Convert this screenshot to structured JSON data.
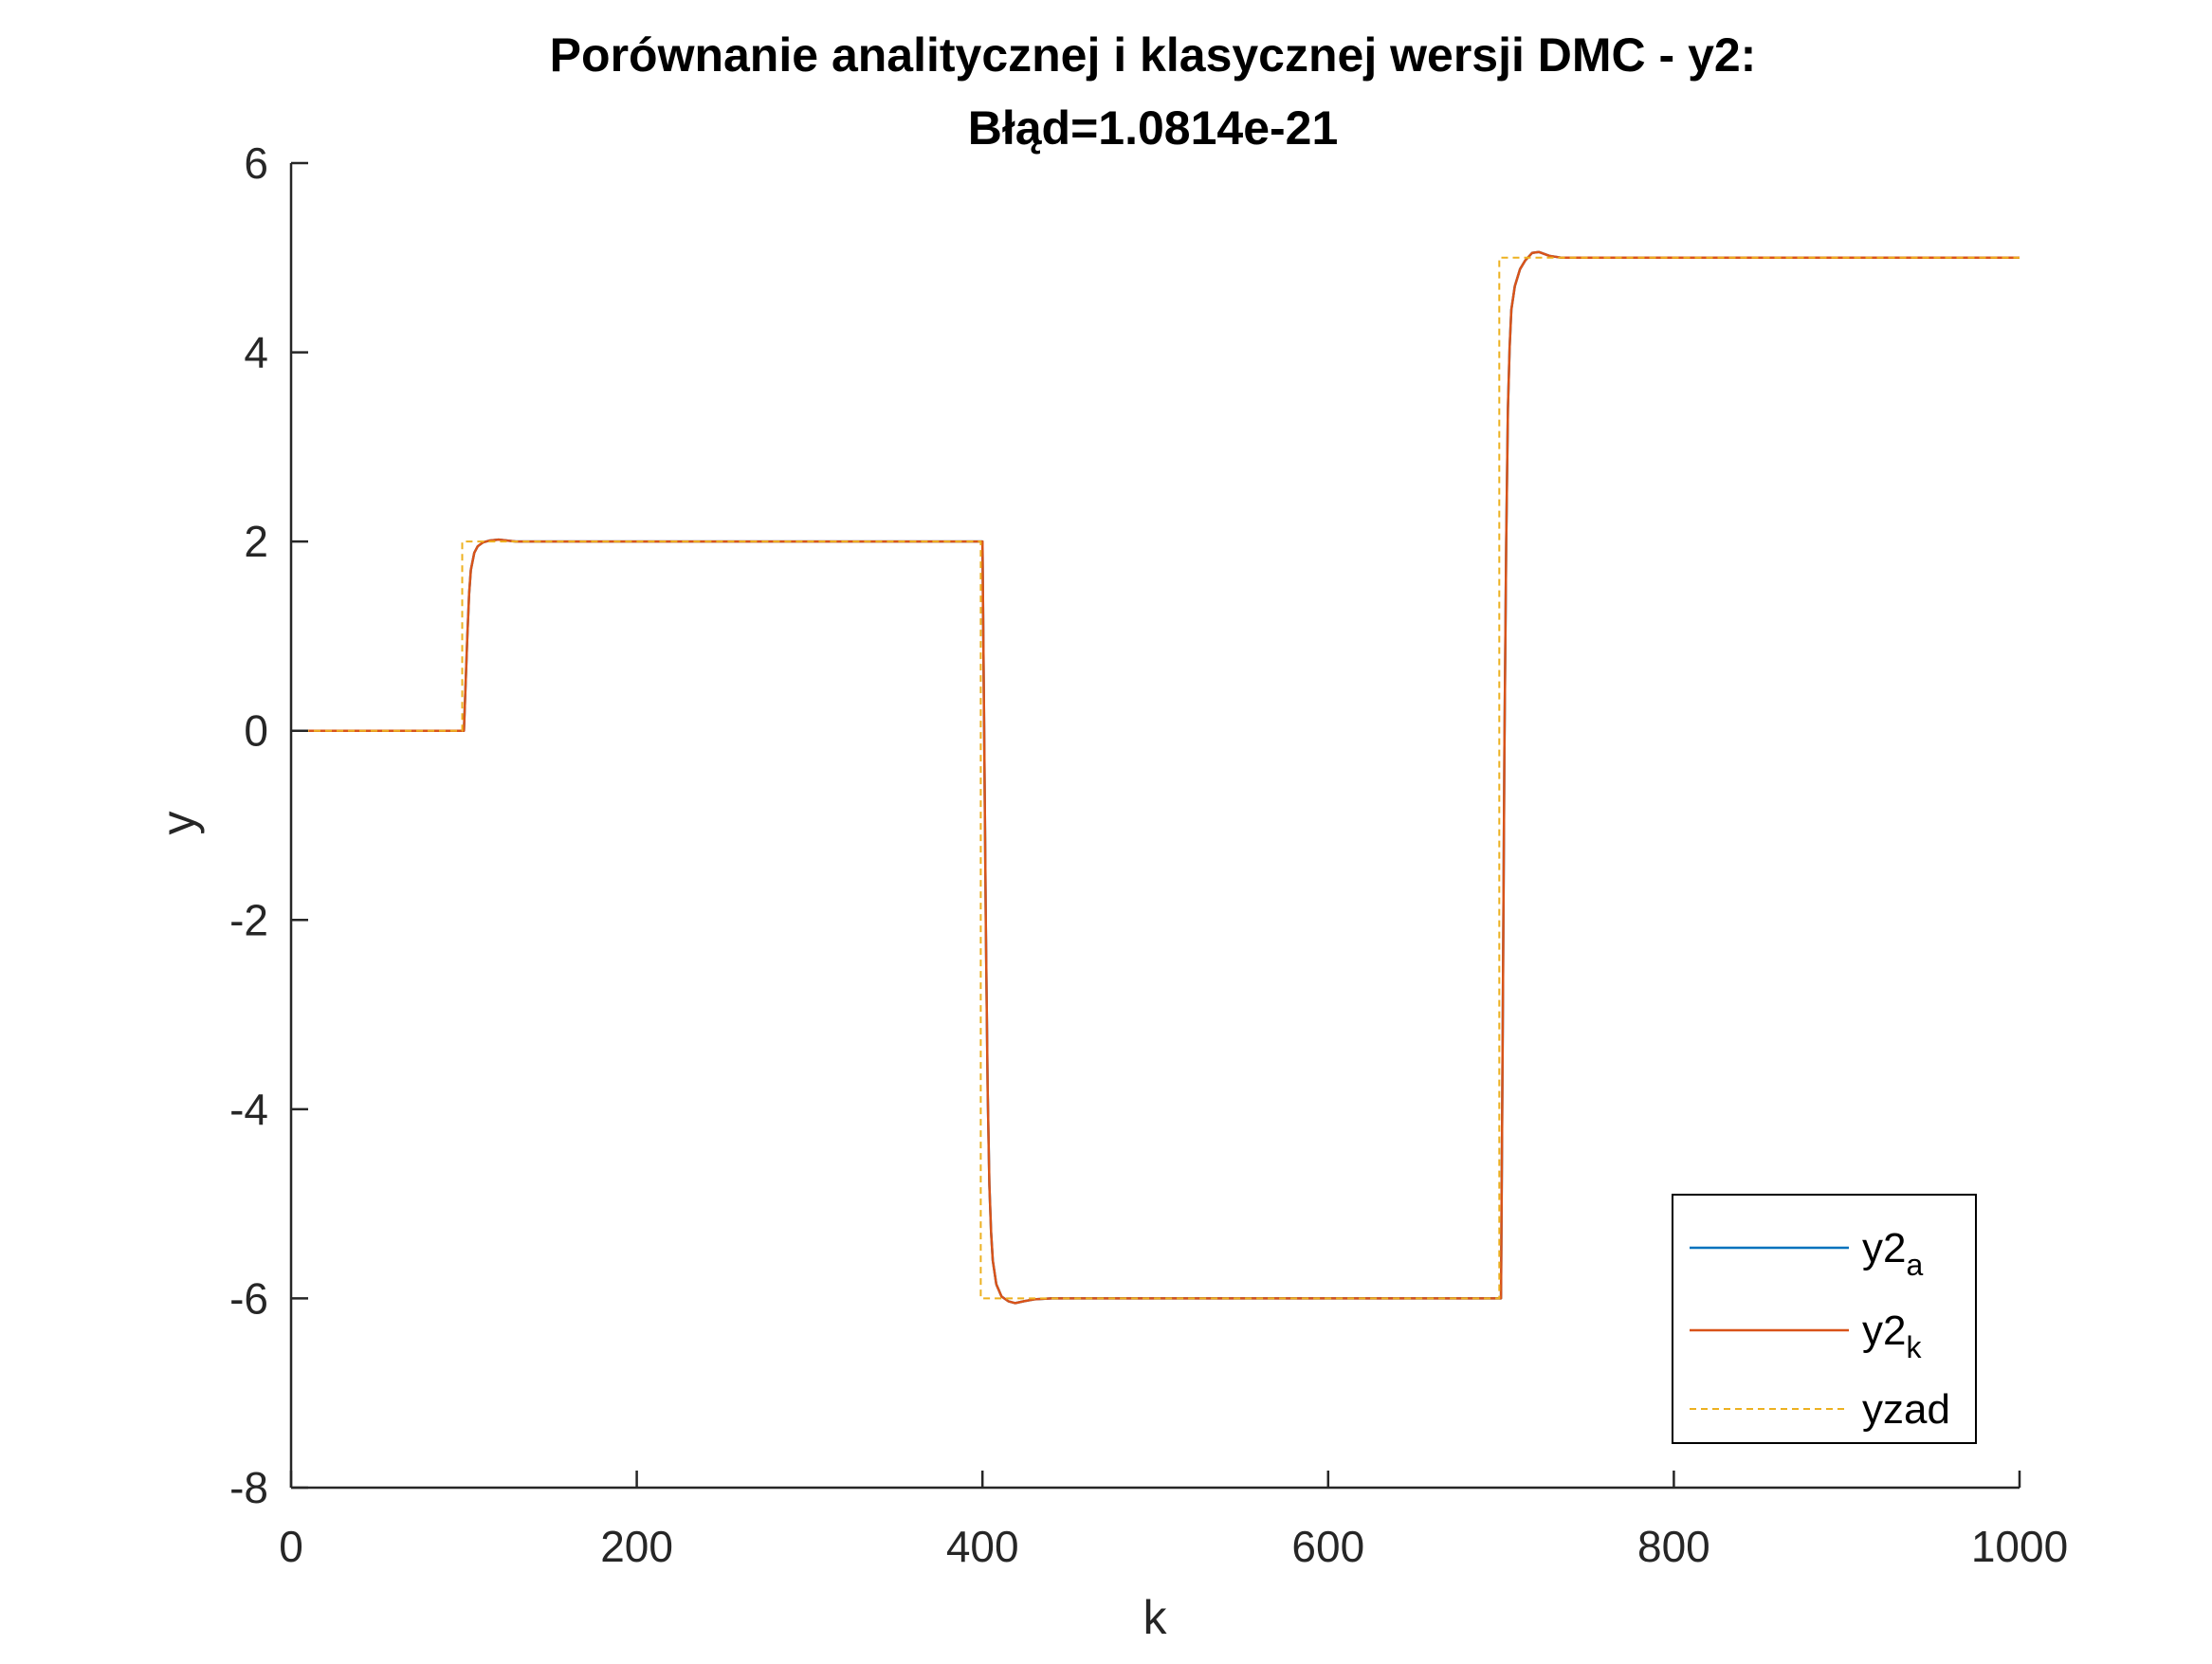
{
  "chart_data": {
    "type": "line",
    "title_line1": "Porównanie analitycznej i klasycznej wersji DMC - y2:",
    "title_line2": "Błąd=1.0814e-21",
    "xlabel": "k",
    "ylabel": "y",
    "xlim": [
      0,
      1000
    ],
    "ylim": [
      -8,
      6
    ],
    "x_ticks": [
      0,
      200,
      400,
      600,
      800,
      1000
    ],
    "y_ticks": [
      -8,
      -6,
      -4,
      -2,
      0,
      2,
      4,
      6
    ],
    "x_tick_labels": [
      "0",
      "200",
      "400",
      "600",
      "800",
      "1000"
    ],
    "y_tick_labels": [
      "-8",
      "-6",
      "-4",
      "-2",
      "0",
      "2",
      "4",
      "6"
    ],
    "grid": false,
    "legend_position": "bottom-right",
    "legend": [
      {
        "base": "y2",
        "sub": "a"
      },
      {
        "base": "y2",
        "sub": "k"
      },
      {
        "base": "yzad",
        "sub": ""
      }
    ],
    "series": [
      {
        "name": "y2_a",
        "color": "#0072BD",
        "style": "solid",
        "x": [
          0,
          100,
          101,
          102,
          103,
          104,
          106,
          108,
          111,
          115,
          120,
          130,
          400,
          401,
          402,
          403,
          404,
          405,
          406,
          408,
          411,
          415,
          419,
          424,
          430,
          440,
          700,
          701,
          702,
          703,
          704,
          705,
          706,
          708,
          711,
          714,
          718,
          722,
          728,
          735,
          1000
        ],
        "y": [
          0,
          0,
          0.5,
          1.0,
          1.45,
          1.7,
          1.88,
          1.95,
          1.99,
          2.01,
          2.02,
          2.0,
          2.0,
          0.0,
          -2.1,
          -3.8,
          -4.8,
          -5.3,
          -5.6,
          -5.85,
          -5.98,
          -6.03,
          -6.05,
          -6.03,
          -6.01,
          -6.0,
          -6.0,
          -3.2,
          -0.2,
          2.0,
          3.4,
          4.05,
          4.45,
          4.7,
          4.88,
          4.97,
          5.05,
          5.06,
          5.02,
          5.0,
          5.0
        ]
      },
      {
        "name": "y2_k",
        "color": "#D95319",
        "style": "solid",
        "x": [
          0,
          100,
          101,
          102,
          103,
          104,
          106,
          108,
          111,
          115,
          120,
          130,
          400,
          401,
          402,
          403,
          404,
          405,
          406,
          408,
          411,
          415,
          419,
          424,
          430,
          440,
          700,
          701,
          702,
          703,
          704,
          705,
          706,
          708,
          711,
          714,
          718,
          722,
          728,
          735,
          1000
        ],
        "y": [
          0,
          0,
          0.5,
          1.0,
          1.45,
          1.7,
          1.88,
          1.95,
          1.99,
          2.01,
          2.02,
          2.0,
          2.0,
          0.0,
          -2.1,
          -3.8,
          -4.8,
          -5.3,
          -5.6,
          -5.85,
          -5.98,
          -6.03,
          -6.05,
          -6.03,
          -6.01,
          -6.0,
          -6.0,
          -3.2,
          -0.2,
          2.0,
          3.4,
          4.05,
          4.45,
          4.7,
          4.88,
          4.97,
          5.05,
          5.06,
          5.02,
          5.0,
          5.0
        ]
      },
      {
        "name": "yzad",
        "color": "#EDB120",
        "style": "dashed",
        "x": [
          0,
          99,
          99,
          399,
          399,
          699,
          699,
          1000
        ],
        "y": [
          0,
          0,
          2,
          2,
          -6,
          -6,
          5,
          5
        ]
      }
    ]
  }
}
